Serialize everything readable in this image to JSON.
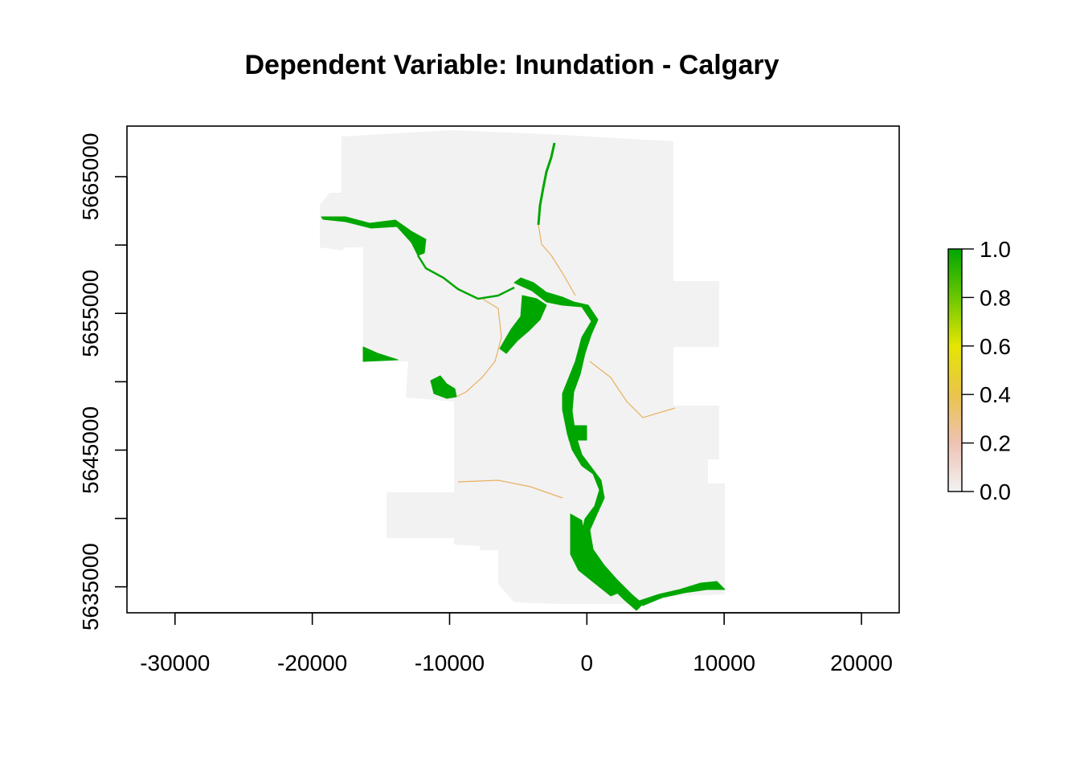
{
  "title": "Dependent Variable: Inundation - Calgary",
  "x_axis": {
    "ticks": [
      -30000,
      -20000,
      -10000,
      0,
      10000,
      20000
    ],
    "tick_labels": [
      "-30000",
      "-20000",
      "-10000",
      "0",
      "10000",
      "20000"
    ],
    "range": [
      -33500,
      22750
    ]
  },
  "y_axis": {
    "ticks": [
      5635000,
      5640000,
      5645000,
      5650000,
      5655000,
      5660000,
      5665000
    ],
    "tick_labels": [
      "5635000",
      "5645000",
      "5655000",
      "5665000"
    ],
    "labeled_ticks": [
      5635000,
      5645000,
      5655000,
      5665000
    ],
    "range": [
      5633100,
      5668700
    ]
  },
  "legend": {
    "values": [
      0.0,
      0.2,
      0.4,
      0.6,
      0.8,
      1.0
    ],
    "labels": [
      "0.0",
      "0.2",
      "0.4",
      "0.6",
      "0.8",
      "1.0"
    ],
    "range": [
      0,
      1
    ],
    "colors": [
      "#f2f2f2",
      "#efc2b3",
      "#eac44b",
      "#e5e503",
      "#6bc700",
      "#00a600"
    ]
  },
  "colors": {
    "background_region": "#f2f2f2",
    "inundated": "#00a600",
    "low": "#f2f2f2",
    "high": "#00a600",
    "tributary": "#e8b060"
  }
}
